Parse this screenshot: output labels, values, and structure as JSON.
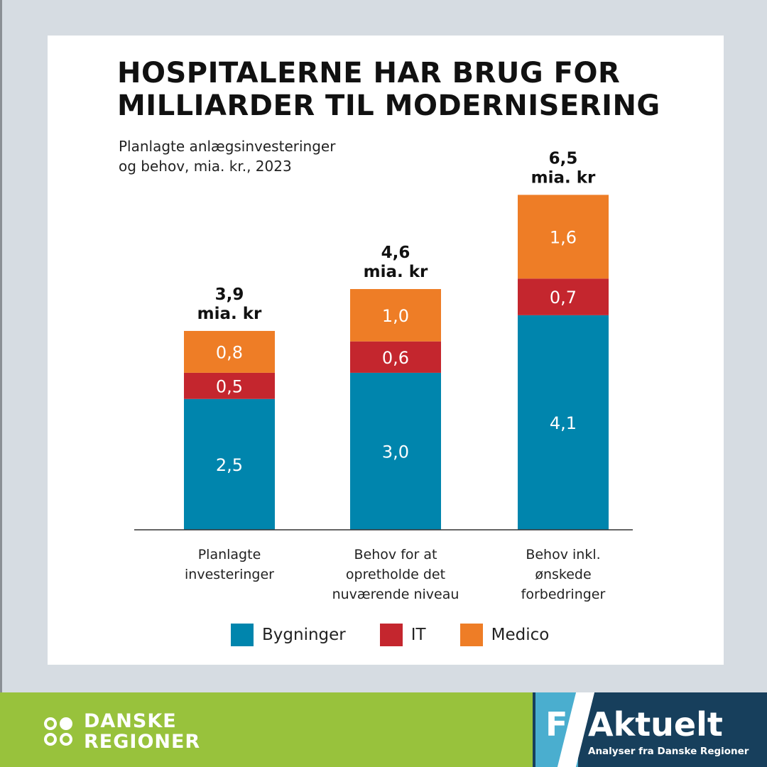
{
  "chart_data": {
    "type": "bar",
    "stacked": true,
    "title": "HOSPITALERNE HAR BRUG FOR MILLIARDER TIL MODERNISERING",
    "title_lines": [
      "HOSPITALERNE HAR BRUG FOR",
      "MILLIARDER TIL MODERNISERING"
    ],
    "subtitle_lines": [
      "Planlagte anlægsinvesteringer",
      "og behov, mia. kr., 2023"
    ],
    "categories": [
      [
        "Planlagte",
        "investeringer"
      ],
      [
        "Behov for at",
        "opretholde det",
        "nuværende niveau"
      ],
      [
        "Behov inkl.",
        "ønskede",
        "forbedringer"
      ]
    ],
    "series": [
      {
        "name": "Bygninger",
        "color": "#0085ad",
        "values": [
          2.5,
          3.0,
          4.1
        ],
        "labels": [
          "2,5",
          "3,0",
          "4,1"
        ]
      },
      {
        "name": "IT",
        "color": "#c4262e",
        "values": [
          0.5,
          0.6,
          0.7
        ],
        "labels": [
          "0,5",
          "0,6",
          "0,7"
        ]
      },
      {
        "name": "Medico",
        "color": "#ee7d26",
        "values": [
          0.8,
          1.0,
          1.6
        ],
        "labels": [
          "0,8",
          "1,0",
          "1,6"
        ]
      }
    ],
    "totals": [
      3.9,
      4.6,
      6.5
    ],
    "total_labels": [
      [
        "3,9",
        "mia. kr"
      ],
      [
        "4,6",
        "mia. kr"
      ],
      [
        "6,5",
        "mia. kr"
      ]
    ],
    "ylim": [
      0,
      6.5
    ],
    "grid": false,
    "legend_position": "bottom"
  },
  "footer": {
    "brand_lines": [
      "DANSKE",
      "REGIONER"
    ],
    "faktuelt_letter": "F",
    "faktuelt_word": "Aktuelt",
    "faktuelt_subtitle": "Analyser fra Danske Regioner"
  }
}
